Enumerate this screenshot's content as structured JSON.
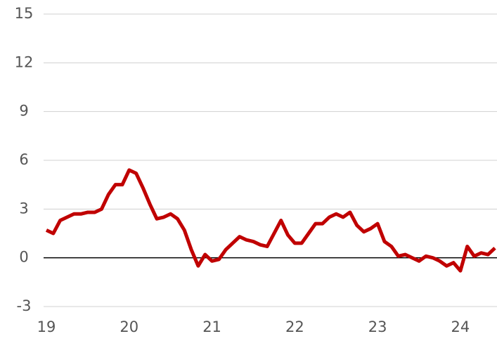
{
  "chart_data": {
    "type": "line",
    "categories": [
      "19",
      null,
      null,
      null,
      null,
      null,
      null,
      null,
      null,
      null,
      null,
      null,
      "20",
      null,
      null,
      null,
      null,
      null,
      null,
      null,
      null,
      null,
      null,
      null,
      "21",
      null,
      null,
      null,
      null,
      null,
      null,
      null,
      null,
      null,
      null,
      null,
      "22",
      null,
      null,
      null,
      null,
      null,
      null,
      null,
      null,
      null,
      null,
      null,
      "23",
      null,
      null,
      null,
      null,
      null,
      null,
      null,
      null,
      null,
      null,
      null,
      "24",
      null,
      null,
      null,
      null,
      null
    ],
    "series": [
      {
        "color": "#c00000",
        "values": [
          1.7,
          1.5,
          2.3,
          2.5,
          2.7,
          2.7,
          2.8,
          2.8,
          3.0,
          3.9,
          4.5,
          4.5,
          5.4,
          5.2,
          4.3,
          3.3,
          2.4,
          2.5,
          2.7,
          2.4,
          1.7,
          0.5,
          -0.5,
          0.2,
          -0.2,
          -0.1,
          0.5,
          0.9,
          1.3,
          1.1,
          1.0,
          0.8,
          0.7,
          1.5,
          2.3,
          1.4,
          0.9,
          0.9,
          1.5,
          2.1,
          2.1,
          2.5,
          2.7,
          2.5,
          2.8,
          2.0,
          1.6,
          1.8,
          2.1,
          1.0,
          0.7,
          0.1,
          0.2,
          0.0,
          -0.2,
          0.1,
          0.0,
          -0.2,
          -0.5,
          -0.3,
          -0.8,
          0.7,
          0.1,
          0.3,
          0.2,
          0.6
        ]
      }
    ],
    "ylim": [
      -3,
      15
    ],
    "yticks": [
      -3,
      0,
      3,
      6,
      9,
      12,
      15
    ],
    "grid": true
  }
}
